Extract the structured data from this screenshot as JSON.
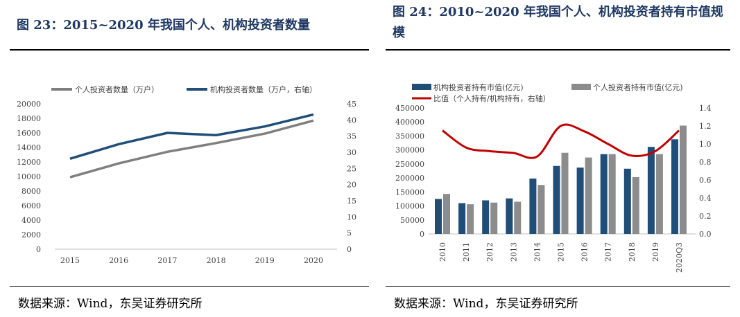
{
  "left_panel": {
    "title": "图 23：2015~2020 年我国个人、机构投资者数量",
    "source": "数据来源：Wind，东吴证券研究所"
  },
  "right_panel": {
    "title": "图 24：2010~2020 年我国个人、机构投资者持有市值规模",
    "source": "数据来源：Wind，东吴证券研究所"
  },
  "chart_data": [
    {
      "type": "line",
      "title": "图 23：2015~2020 年我国个人、机构投资者数量",
      "categories": [
        "2015",
        "2016",
        "2017",
        "2018",
        "2019",
        "2020"
      ],
      "series": [
        {
          "name": "个人投资者数量（万户）",
          "axis": "left",
          "color": "#7f7f7f",
          "values": [
            9900,
            11800,
            13400,
            14600,
            15900,
            17700
          ]
        },
        {
          "name": "机构投资者数量（万户，右轴）",
          "axis": "right",
          "color": "#1f4e79",
          "values": [
            28.0,
            32.5,
            36.0,
            35.3,
            38.0,
            41.7
          ]
        }
      ],
      "y_left": {
        "min": 0,
        "max": 20000,
        "step": 2000,
        "ticks": [
          "0",
          "2000",
          "4000",
          "6000",
          "8000",
          "10000",
          "12000",
          "14000",
          "16000",
          "18000",
          "20000"
        ]
      },
      "y_right": {
        "min": 0,
        "max": 45,
        "step": 5,
        "ticks": [
          "0",
          "5",
          "10",
          "15",
          "20",
          "25",
          "30",
          "35",
          "40",
          "45"
        ]
      },
      "legend_position": "top",
      "grid": false
    },
    {
      "type": "bar",
      "title": "图 24：2010~2020 年我国个人、机构投资者持有市值规模",
      "categories": [
        "2010",
        "2011",
        "2012",
        "2013",
        "2014",
        "2015",
        "2016",
        "2017",
        "2018",
        "2019",
        "2020Q3"
      ],
      "series": [
        {
          "name": "机构投资者持有市值(亿元)",
          "kind": "bar",
          "axis": "left",
          "color": "#1f4e79",
          "values": [
            125000,
            110000,
            120000,
            127000,
            198000,
            243000,
            237000,
            285000,
            233000,
            311000,
            338000
          ]
        },
        {
          "name": "个人投资者持有市值(亿元)",
          "kind": "bar",
          "axis": "left",
          "color": "#8c8c8c",
          "values": [
            143000,
            106000,
            112000,
            115000,
            175000,
            290000,
            273000,
            285000,
            203000,
            285000,
            387000
          ]
        },
        {
          "name": "比值（个人持有/机构持有，右轴）",
          "kind": "line",
          "axis": "right",
          "color": "#c00000",
          "values": [
            1.15,
            0.96,
            0.92,
            0.9,
            0.86,
            1.2,
            1.14,
            1.0,
            0.87,
            0.92,
            1.15
          ]
        }
      ],
      "y_left": {
        "min": 0,
        "max": 450000,
        "step": 50000,
        "ticks": [
          "0",
          "50000",
          "100000",
          "150000",
          "200000",
          "250000",
          "300000",
          "350000",
          "400000",
          "450000"
        ]
      },
      "y_right": {
        "min": 0,
        "max": 1.4,
        "step": 0.2,
        "ticks": [
          "0.0",
          "0.2",
          "0.4",
          "0.6",
          "0.8",
          "1.0",
          "1.2",
          "1.4"
        ]
      },
      "legend_position": "top",
      "grid": false
    }
  ]
}
